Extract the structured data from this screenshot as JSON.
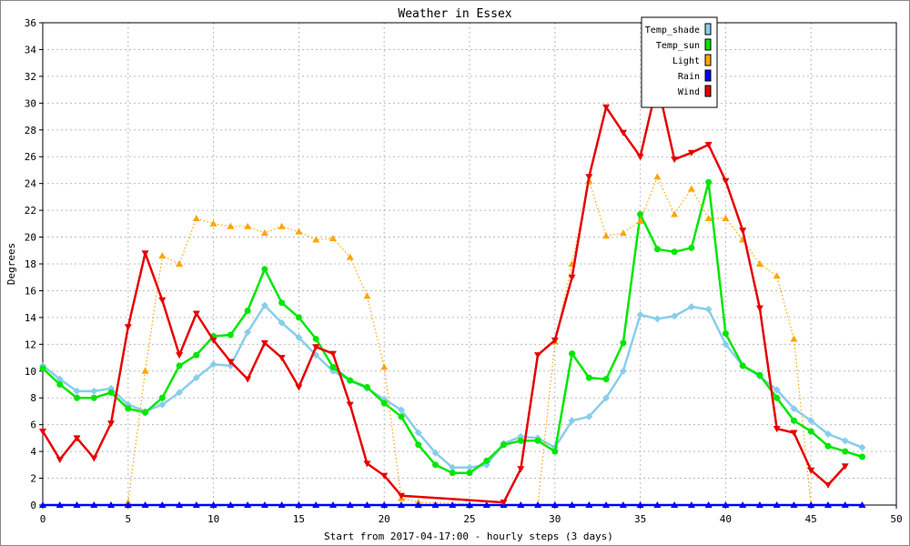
{
  "chart_data": {
    "type": "line",
    "title": "Weather in Essex",
    "xlabel": "Start from 2017-04-17:00 - hourly steps (3 days)",
    "ylabel": "Degrees",
    "xlim": [
      0,
      50
    ],
    "ylim": [
      0,
      36
    ],
    "xticks": [
      0,
      5,
      10,
      15,
      20,
      25,
      30,
      35,
      40,
      45,
      50
    ],
    "yticks": [
      0,
      2,
      4,
      6,
      8,
      10,
      12,
      14,
      16,
      18,
      20,
      22,
      24,
      26,
      28,
      30,
      32,
      34,
      36
    ],
    "grid": true,
    "legend_position": "top-right",
    "series": [
      {
        "name": "Temp_shade",
        "color": "#87ceeb",
        "style": "solid",
        "marker": "diamond",
        "x": [
          0,
          1,
          2,
          3,
          4,
          5,
          6,
          7,
          8,
          9,
          10,
          11,
          12,
          13,
          14,
          15,
          16,
          17,
          18,
          19,
          20,
          21,
          22,
          23,
          24,
          25,
          26,
          27,
          28,
          29,
          30,
          31,
          32,
          33,
          34,
          35,
          36,
          37,
          38,
          39,
          40,
          41,
          42,
          43,
          44,
          45,
          46,
          47,
          48
        ],
        "y": [
          10.4,
          9.4,
          8.5,
          8.5,
          8.7,
          7.5,
          7.0,
          7.5,
          8.4,
          9.5,
          10.5,
          10.4,
          12.9,
          14.9,
          13.6,
          12.5,
          11.2,
          10.0,
          9.3,
          8.7,
          7.9,
          7.1,
          5.4,
          3.9,
          2.8,
          2.8,
          3.0,
          4.6,
          5.1,
          5.0,
          4.3,
          6.3,
          6.6,
          8.0,
          10.0,
          14.2,
          13.9,
          14.1,
          14.8,
          14.6,
          12.0,
          10.4,
          9.6,
          8.6,
          7.2,
          6.3,
          5.3,
          4.8,
          4.3
        ]
      },
      {
        "name": "Temp_sun",
        "color": "#00e600",
        "style": "solid",
        "marker": "circle",
        "x": [
          0,
          1,
          2,
          3,
          4,
          5,
          6,
          7,
          8,
          9,
          10,
          11,
          12,
          13,
          14,
          15,
          16,
          17,
          18,
          19,
          20,
          21,
          22,
          23,
          24,
          25,
          26,
          27,
          28,
          29,
          30,
          31,
          32,
          33,
          34,
          35,
          36,
          37,
          38,
          39,
          40,
          41,
          42,
          43,
          44,
          45,
          46,
          47,
          48
        ],
        "y": [
          10.2,
          9.0,
          8.0,
          8.0,
          8.4,
          7.2,
          6.9,
          8.0,
          10.4,
          11.2,
          12.6,
          12.7,
          14.5,
          17.6,
          15.1,
          14.0,
          12.4,
          10.3,
          9.3,
          8.8,
          7.6,
          6.6,
          4.5,
          3.0,
          2.4,
          2.4,
          3.3,
          4.5,
          4.8,
          4.8,
          4.0,
          11.3,
          9.5,
          9.4,
          12.1,
          21.7,
          19.1,
          18.9,
          19.2,
          24.1,
          12.8,
          10.4,
          9.7,
          8.0,
          6.3,
          5.5,
          4.4,
          4.0,
          3.6
        ]
      },
      {
        "name": "Light",
        "color": "#ffa500",
        "style": "dotted",
        "marker": "triangle-up",
        "x": [
          5,
          6,
          7,
          8,
          9,
          10,
          11,
          12,
          13,
          14,
          15,
          16,
          17,
          18,
          19,
          20,
          21,
          22,
          27,
          28,
          29,
          30,
          31,
          32,
          33,
          34,
          35,
          36,
          37,
          38,
          39,
          40,
          41,
          42,
          43,
          44,
          45
        ],
        "y": [
          0.2,
          10.0,
          18.6,
          18.0,
          21.4,
          21.0,
          20.8,
          20.8,
          20.3,
          20.8,
          20.4,
          19.8,
          19.9,
          18.5,
          15.6,
          10.3,
          0.5,
          0.2,
          0.0,
          0.0,
          0.0,
          12.2,
          18.0,
          24.2,
          20.1,
          20.3,
          21.2,
          24.5,
          21.7,
          23.6,
          21.4,
          21.4,
          19.8,
          18.0,
          17.1,
          12.4,
          0.0
        ]
      },
      {
        "name": "Rain",
        "color": "#0000ff",
        "style": "solid",
        "marker": "triangle-up",
        "x": [
          0,
          1,
          2,
          3,
          4,
          5,
          6,
          7,
          8,
          9,
          10,
          11,
          12,
          13,
          14,
          15,
          16,
          17,
          18,
          19,
          20,
          21,
          22,
          23,
          24,
          25,
          26,
          27,
          28,
          29,
          30,
          31,
          32,
          33,
          34,
          35,
          36,
          37,
          38,
          39,
          40,
          41,
          42,
          43,
          44,
          45,
          46,
          47,
          48
        ],
        "y": [
          0,
          0,
          0,
          0,
          0,
          0,
          0,
          0,
          0,
          0,
          0,
          0,
          0,
          0,
          0,
          0,
          0,
          0,
          0,
          0,
          0,
          0,
          0,
          0,
          0,
          0,
          0,
          0,
          0,
          0,
          0,
          0,
          0,
          0,
          0,
          0,
          0,
          0,
          0,
          0,
          0,
          0,
          0,
          0,
          0,
          0,
          0,
          0,
          0
        ]
      },
      {
        "name": "Wind",
        "color": "#e60000",
        "style": "solid",
        "marker": "triangle-down",
        "x": [
          0,
          1,
          2,
          3,
          4,
          5,
          6,
          7,
          8,
          9,
          10,
          11,
          12,
          13,
          14,
          15,
          16,
          17,
          18,
          19,
          20,
          21,
          27,
          28,
          29,
          30,
          31,
          32,
          33,
          34,
          35,
          36,
          37,
          38,
          39,
          40,
          41,
          42,
          43,
          44,
          45,
          46,
          47
        ],
        "y": [
          5.5,
          3.4,
          5.0,
          3.5,
          6.1,
          13.3,
          18.8,
          15.3,
          11.2,
          14.3,
          12.3,
          10.7,
          9.4,
          12.1,
          11.0,
          8.8,
          11.8,
          11.3,
          7.5,
          3.1,
          2.2,
          0.7,
          0.2,
          2.7,
          11.2,
          12.3,
          17.0,
          24.5,
          29.7,
          27.8,
          26.0,
          31.5,
          25.8,
          26.3,
          26.9,
          24.2,
          20.5,
          14.7,
          5.7,
          5.4,
          2.6,
          1.5,
          2.9
        ]
      }
    ]
  }
}
